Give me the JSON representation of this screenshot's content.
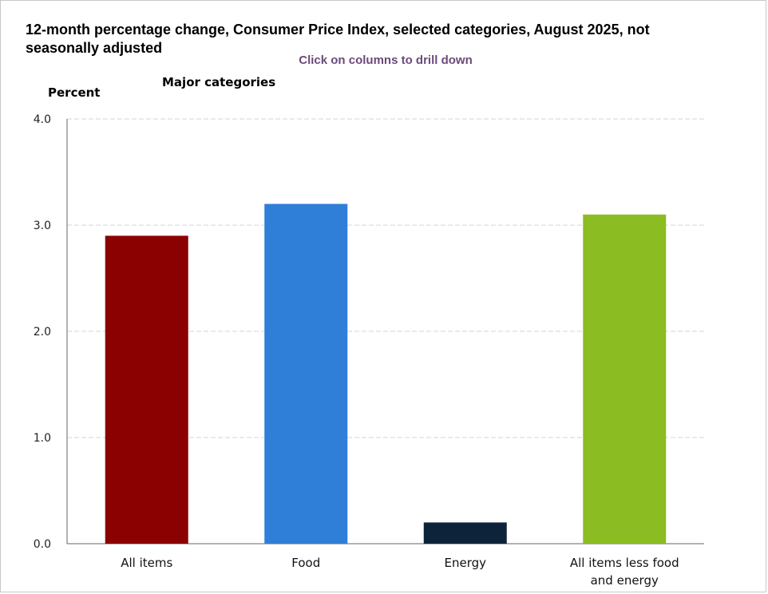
{
  "chart_data": {
    "type": "bar",
    "title": "12-month percentage change, Consumer Price Index, selected categories, August 2025, not seasonally adjusted",
    "instruction": "Click on columns to drill down",
    "subtitle": "Major categories",
    "ylabel": "Percent",
    "xlabel": "",
    "ylim": [
      0,
      4
    ],
    "yticks": [
      "0.0",
      "1.0",
      "2.0",
      "3.0",
      "4.0"
    ],
    "ytick_values": [
      0,
      1,
      2,
      3,
      4
    ],
    "grid": true,
    "categories": [
      "All items",
      "Food",
      "Energy",
      "All items less food and energy"
    ],
    "values": [
      2.9,
      3.2,
      0.2,
      3.1
    ],
    "colors": [
      "#8b0000",
      "#2f7ed8",
      "#0d233a",
      "#8bbc21"
    ]
  }
}
